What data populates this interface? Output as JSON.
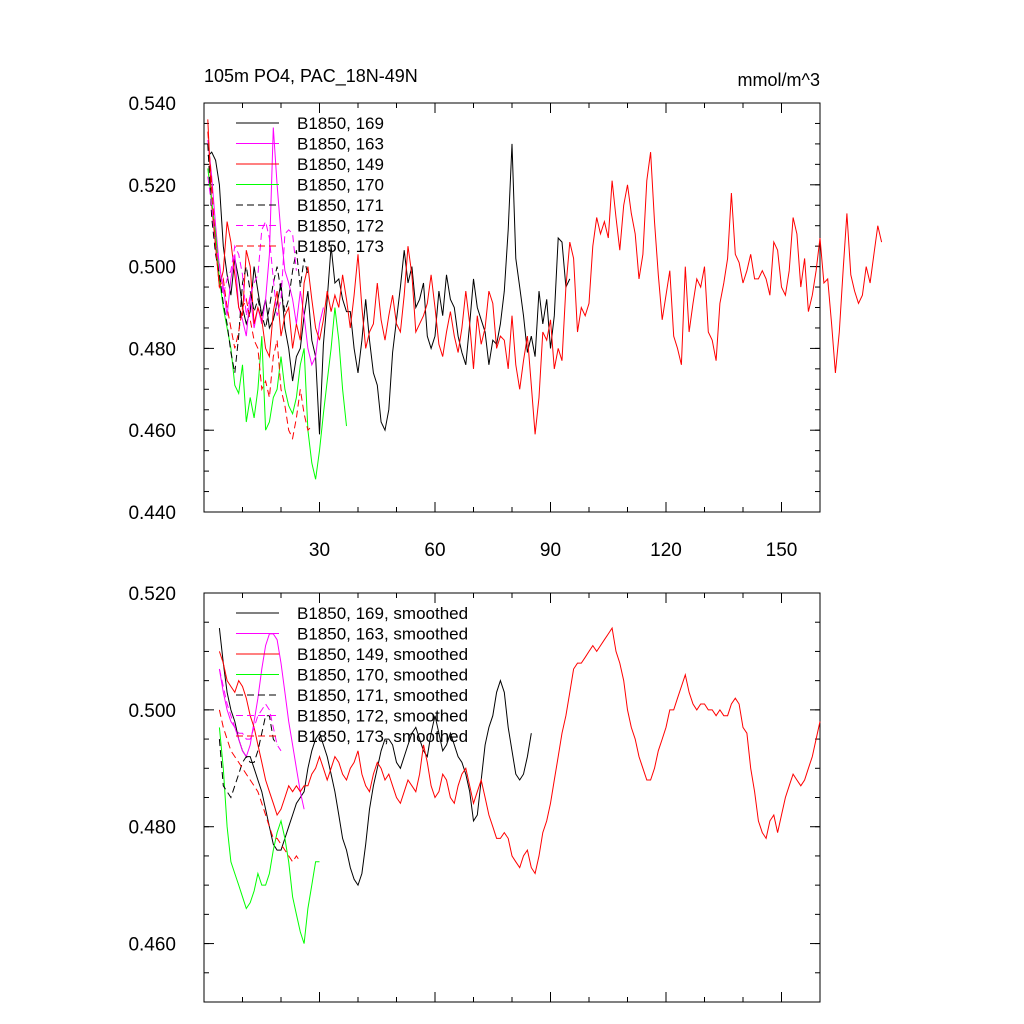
{
  "chart_data": [
    {
      "type": "line",
      "title": "105m PO4, PAC_18N-49N",
      "units": "mmol/m^3",
      "xlim": [
        0,
        160
      ],
      "ylim": [
        0.44,
        0.54
      ],
      "xticks": [
        30,
        60,
        90,
        120,
        150
      ],
      "yticks": [
        0.44,
        0.46,
        0.48,
        0.5,
        0.52,
        0.54
      ],
      "ytick_labels": [
        "0.440",
        "0.460",
        "0.480",
        "0.500",
        "0.520",
        "0.540"
      ],
      "series": [
        {
          "name": "B1850, 169",
          "color": "#000000",
          "dash": "solid",
          "x_start": 1,
          "values": [
            0.527,
            0.528,
            0.526,
            0.52,
            0.505,
            0.498,
            0.493,
            0.502,
            0.497,
            0.49,
            0.486,
            0.489,
            0.5,
            0.494,
            0.488,
            0.492,
            0.485,
            0.487,
            0.491,
            0.496,
            0.485,
            0.48,
            0.472,
            0.478,
            0.48,
            0.488,
            0.494,
            0.482,
            0.478,
            0.459,
            0.481,
            0.492,
            0.505,
            0.496,
            0.497,
            0.492,
            0.489,
            0.489,
            0.48,
            0.474,
            0.482,
            0.492,
            0.482,
            0.474,
            0.471,
            0.462,
            0.46,
            0.465,
            0.479,
            0.487,
            0.495,
            0.504,
            0.496,
            0.5,
            0.49,
            0.492,
            0.496,
            0.483,
            0.48,
            0.483,
            0.494,
            0.488,
            0.498,
            0.492,
            0.49,
            0.483,
            0.479,
            0.476,
            0.486,
            0.497,
            0.49,
            0.487,
            0.484,
            0.476,
            0.482,
            0.481,
            0.486,
            0.494,
            0.509,
            0.53,
            0.502,
            0.495,
            0.488,
            0.479,
            0.483,
            0.478,
            0.494,
            0.486,
            0.492,
            0.48,
            0.488,
            0.507,
            0.506,
            0.495,
            0.497
          ]
        },
        {
          "name": "B1850, 163",
          "color": "#ff00ff",
          "dash": "solid",
          "x_start": 1,
          "values": [
            0.531,
            0.522,
            0.51,
            0.5,
            0.495,
            0.488,
            0.497,
            0.503,
            0.49,
            0.487,
            0.483,
            0.493,
            0.485,
            0.49,
            0.486,
            0.492,
            0.503,
            0.534,
            0.52,
            0.508,
            0.499,
            0.496,
            0.492,
            0.486,
            0.494,
            0.488,
            0.48,
            0.476,
            0.478,
            0.486,
            0.49
          ]
        },
        {
          "name": "B1850, 149",
          "color": "#ff0000",
          "dash": "solid",
          "x_start": 1,
          "values": [
            0.536,
            0.515,
            0.505,
            0.495,
            0.499,
            0.511,
            0.506,
            0.498,
            0.49,
            0.488,
            0.504,
            0.5,
            0.486,
            0.49,
            0.487,
            0.48,
            0.478,
            0.489,
            0.494,
            0.483,
            0.488,
            0.49,
            0.48,
            0.486,
            0.482,
            0.496,
            0.5,
            0.492,
            0.485,
            0.482,
            0.487,
            0.494,
            0.489,
            0.493,
            0.49,
            0.498,
            0.492,
            0.485,
            0.493,
            0.503,
            0.49,
            0.48,
            0.484,
            0.486,
            0.496,
            0.487,
            0.482,
            0.488,
            0.493,
            0.486,
            0.484,
            0.493,
            0.505,
            0.498,
            0.484,
            0.486,
            0.488,
            0.491,
            0.498,
            0.49,
            0.481,
            0.478,
            0.484,
            0.489,
            0.483,
            0.479,
            0.485,
            0.494,
            0.486,
            0.475,
            0.488,
            0.481,
            0.485,
            0.494,
            0.491,
            0.48,
            0.483,
            0.482,
            0.475,
            0.488,
            0.476,
            0.47,
            0.477,
            0.483,
            0.471,
            0.459,
            0.468,
            0.484,
            0.482,
            0.487,
            0.475,
            0.48,
            0.477,
            0.495,
            0.506,
            0.502,
            0.484,
            0.49,
            0.488,
            0.491,
            0.505,
            0.512,
            0.508,
            0.511,
            0.507,
            0.521,
            0.512,
            0.504,
            0.515,
            0.52,
            0.513,
            0.508,
            0.497,
            0.503,
            0.521,
            0.528,
            0.511,
            0.498,
            0.487,
            0.493,
            0.499,
            0.483,
            0.48,
            0.476,
            0.5,
            0.484,
            0.491,
            0.497,
            0.495,
            0.5,
            0.484,
            0.482,
            0.477,
            0.491,
            0.496,
            0.502,
            0.518,
            0.503,
            0.501,
            0.496,
            0.499,
            0.503,
            0.497,
            0.497,
            0.499,
            0.497,
            0.493,
            0.506,
            0.504,
            0.495,
            0.493,
            0.499,
            0.512,
            0.508,
            0.495,
            0.502,
            0.489,
            0.493,
            0.499,
            0.507,
            0.496,
            0.497,
            0.486,
            0.474,
            0.484,
            0.499,
            0.513,
            0.498,
            0.494,
            0.491,
            0.493,
            0.5,
            0.496,
            0.503,
            0.51,
            0.506
          ]
        },
        {
          "name": "B1850, 170",
          "color": "#00ff00",
          "dash": "solid",
          "x_start": 1,
          "values": [
            0.524,
            0.516,
            0.508,
            0.497,
            0.49,
            0.485,
            0.48,
            0.471,
            0.469,
            0.476,
            0.462,
            0.468,
            0.463,
            0.47,
            0.483,
            0.46,
            0.462,
            0.468,
            0.47,
            0.478,
            0.47,
            0.466,
            0.464,
            0.468,
            0.476,
            0.48,
            0.46,
            0.452,
            0.448,
            0.455,
            0.464,
            0.472,
            0.48,
            0.49,
            0.482,
            0.47,
            0.461
          ]
        },
        {
          "name": "B1850, 171",
          "color": "#000000",
          "dash": "dashed",
          "x_start": 1,
          "values": [
            0.53,
            0.512,
            0.503,
            0.498,
            0.491,
            0.486,
            0.479,
            0.474,
            0.483,
            0.496,
            0.5,
            0.494,
            0.489,
            0.492,
            0.488,
            0.485,
            0.49,
            0.496,
            0.5,
            0.494,
            0.489,
            0.492,
            0.499,
            0.504,
            0.495,
            0.502,
            0.498
          ]
        },
        {
          "name": "B1850, 172",
          "color": "#ff00ff",
          "dash": "dashed",
          "x_start": 1,
          "values": [
            0.522,
            0.515,
            0.505,
            0.501,
            0.493,
            0.497,
            0.499,
            0.505,
            0.503,
            0.498,
            0.488,
            0.493,
            0.496,
            0.498,
            0.509,
            0.511,
            0.507,
            0.497,
            0.488,
            0.492,
            0.508,
            0.509,
            0.508,
            0.499
          ]
        },
        {
          "name": "B1850, 173",
          "color": "#ff0000",
          "dash": "dashed",
          "x_start": 1,
          "values": [
            0.533,
            0.52,
            0.505,
            0.495,
            0.497,
            0.49,
            0.485,
            0.48,
            0.484,
            0.49,
            0.492,
            0.487,
            0.482,
            0.48,
            0.47,
            0.472,
            0.468,
            0.478,
            0.482,
            0.47,
            0.466,
            0.46,
            0.458,
            0.463,
            0.47,
            0.464,
            0.46,
            0.461
          ]
        }
      ]
    },
    {
      "type": "line",
      "xlim": [
        0,
        160
      ],
      "ylim": [
        0.45,
        0.52
      ],
      "xticks": [
        30,
        60,
        90,
        120,
        150
      ],
      "yticks": [
        0.46,
        0.48,
        0.5,
        0.52
      ],
      "ytick_labels": [
        "0.460",
        "0.480",
        "0.500",
        "0.520"
      ],
      "series": [
        {
          "name": "B1850, 169, smoothed",
          "color": "#000000",
          "dash": "solid",
          "x_start": 4,
          "values": [
            0.514,
            0.508,
            0.503,
            0.5,
            0.498,
            0.495,
            0.493,
            0.492,
            0.492,
            0.49,
            0.488,
            0.486,
            0.483,
            0.48,
            0.477,
            0.476,
            0.476,
            0.478,
            0.48,
            0.482,
            0.484,
            0.485,
            0.486,
            0.49,
            0.493,
            0.495,
            0.496,
            0.494,
            0.492,
            0.489,
            0.486,
            0.482,
            0.478,
            0.476,
            0.473,
            0.471,
            0.47,
            0.472,
            0.477,
            0.483,
            0.487,
            0.49,
            0.493,
            0.495,
            0.495,
            0.494,
            0.491,
            0.49,
            0.492,
            0.494,
            0.496,
            0.497,
            0.495,
            0.493,
            0.492,
            0.496,
            0.499,
            0.496,
            0.493,
            0.494,
            0.496,
            0.494,
            0.492,
            0.491,
            0.489,
            0.486,
            0.481,
            0.482,
            0.488,
            0.494,
            0.497,
            0.499,
            0.503,
            0.505,
            0.503,
            0.497,
            0.493,
            0.489,
            0.488,
            0.489,
            0.492,
            0.496
          ]
        },
        {
          "name": "B1850, 163, smoothed",
          "color": "#ff00ff",
          "dash": "solid",
          "x_start": 4,
          "values": [
            0.507,
            0.503,
            0.5,
            0.498,
            0.497,
            0.495,
            0.493,
            0.492,
            0.494,
            0.498,
            0.502,
            0.507,
            0.511,
            0.513,
            0.513,
            0.512,
            0.508,
            0.503,
            0.498,
            0.494,
            0.49,
            0.486,
            0.483
          ]
        },
        {
          "name": "B1850, 149, smoothed",
          "color": "#ff0000",
          "dash": "solid",
          "x_start": 4,
          "values": [
            0.51,
            0.508,
            0.505,
            0.504,
            0.503,
            0.505,
            0.504,
            0.502,
            0.499,
            0.497,
            0.494,
            0.491,
            0.488,
            0.486,
            0.484,
            0.482,
            0.483,
            0.485,
            0.487,
            0.486,
            0.487,
            0.486,
            0.487,
            0.487,
            0.489,
            0.49,
            0.492,
            0.49,
            0.488,
            0.49,
            0.492,
            0.491,
            0.489,
            0.488,
            0.49,
            0.491,
            0.493,
            0.489,
            0.487,
            0.486,
            0.489,
            0.491,
            0.49,
            0.488,
            0.489,
            0.487,
            0.485,
            0.484,
            0.486,
            0.488,
            0.487,
            0.486,
            0.489,
            0.494,
            0.491,
            0.487,
            0.485,
            0.486,
            0.489,
            0.488,
            0.485,
            0.484,
            0.487,
            0.489,
            0.49,
            0.487,
            0.484,
            0.486,
            0.488,
            0.485,
            0.482,
            0.48,
            0.478,
            0.478,
            0.479,
            0.478,
            0.475,
            0.474,
            0.473,
            0.475,
            0.476,
            0.473,
            0.472,
            0.475,
            0.479,
            0.481,
            0.484,
            0.488,
            0.492,
            0.496,
            0.499,
            0.503,
            0.507,
            0.508,
            0.508,
            0.509,
            0.51,
            0.511,
            0.51,
            0.511,
            0.512,
            0.513,
            0.514,
            0.51,
            0.508,
            0.505,
            0.5,
            0.497,
            0.495,
            0.492,
            0.49,
            0.488,
            0.488,
            0.49,
            0.493,
            0.495,
            0.497,
            0.5,
            0.5,
            0.502,
            0.504,
            0.506,
            0.503,
            0.501,
            0.5,
            0.501,
            0.501,
            0.5,
            0.5,
            0.499,
            0.5,
            0.499,
            0.499,
            0.501,
            0.502,
            0.501,
            0.497,
            0.496,
            0.49,
            0.486,
            0.481,
            0.479,
            0.478,
            0.481,
            0.482,
            0.479,
            0.482,
            0.485,
            0.487,
            0.489,
            0.488,
            0.487,
            0.488,
            0.49,
            0.492,
            0.495,
            0.498
          ]
        },
        {
          "name": "B1850, 170, smoothed",
          "color": "#00ff00",
          "dash": "solid",
          "x_start": 4,
          "values": [
            0.497,
            0.49,
            0.48,
            0.474,
            0.472,
            0.47,
            0.468,
            0.466,
            0.467,
            0.469,
            0.472,
            0.47,
            0.47,
            0.472,
            0.476,
            0.479,
            0.481,
            0.478,
            0.474,
            0.468,
            0.465,
            0.462,
            0.46,
            0.466,
            0.47,
            0.474,
            0.474
          ]
        },
        {
          "name": "B1850, 171, smoothed",
          "color": "#000000",
          "dash": "dashed",
          "x_start": 4,
          "values": [
            0.495,
            0.487,
            0.486,
            0.485,
            0.487,
            0.489,
            0.491,
            0.492,
            0.491,
            0.491,
            0.493,
            0.496,
            0.499,
            0.499,
            0.495,
            0.494
          ]
        },
        {
          "name": "B1850, 172, smoothed",
          "color": "#ff00ff",
          "dash": "dashed",
          "x_start": 4,
          "values": [
            0.507,
            0.504,
            0.501,
            0.499,
            0.497,
            0.496,
            0.496,
            0.495,
            0.495,
            0.497,
            0.499,
            0.5,
            0.501,
            0.5,
            0.497,
            0.494,
            0.493
          ]
        },
        {
          "name": "B1850, 173, smoothed",
          "color": "#ff0000",
          "dash": "dashed",
          "x_start": 4,
          "values": [
            0.5,
            0.497,
            0.495,
            0.493,
            0.492,
            0.491,
            0.49,
            0.489,
            0.488,
            0.487,
            0.486,
            0.484,
            0.482,
            0.48,
            0.478,
            0.478,
            0.477,
            0.476,
            0.475,
            0.474,
            0.475,
            0.474
          ]
        }
      ]
    }
  ]
}
